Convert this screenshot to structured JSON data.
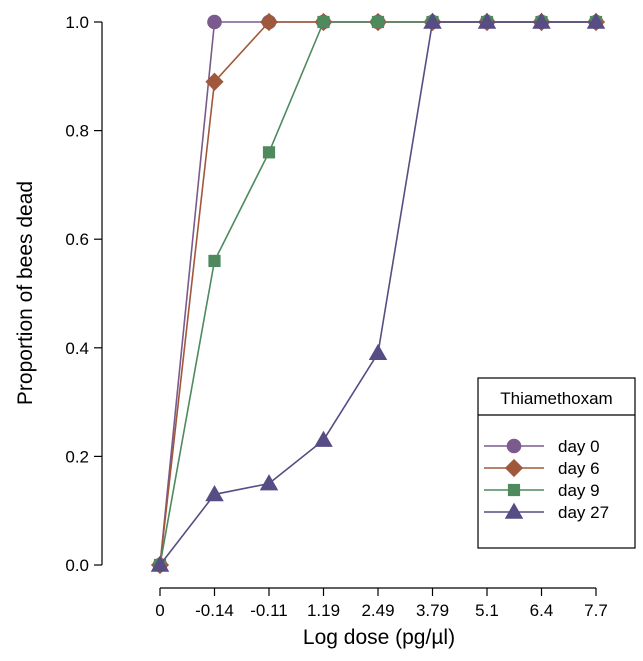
{
  "chart_data": {
    "type": "line",
    "title": "",
    "xlabel": "Log dose (pg/µl)",
    "ylabel": "Proportion of bees dead",
    "categories": [
      "0",
      "-0.14",
      "-0.11",
      "1.19",
      "2.49",
      "3.79",
      "5.1",
      "6.4",
      "7.7"
    ],
    "ylim": [
      0,
      1
    ],
    "yticks": [
      "0.0",
      "0.2",
      "0.4",
      "0.6",
      "0.8",
      "1.0"
    ],
    "grid": false,
    "legend": {
      "title": "Thiamethoxam",
      "placement": "bottom-right"
    },
    "series": [
      {
        "name": "day 0",
        "marker": "circle",
        "color": "#7b5a8e",
        "values": [
          0,
          1.0,
          1.0,
          1.0,
          1.0,
          1.0,
          1.0,
          1.0,
          1.0
        ]
      },
      {
        "name": "day 6",
        "marker": "diamond",
        "color": "#a0583a",
        "values": [
          0,
          0.89,
          1.0,
          1.0,
          1.0,
          1.0,
          1.0,
          1.0,
          1.0
        ]
      },
      {
        "name": "day 9",
        "marker": "square",
        "color": "#4e8a5e",
        "values": [
          0,
          0.56,
          0.76,
          1.0,
          1.0,
          1.0,
          1.0,
          1.0,
          1.0
        ]
      },
      {
        "name": "day 27",
        "marker": "triangle",
        "color": "#574c84",
        "values": [
          0,
          0.13,
          0.15,
          0.23,
          0.39,
          1.0,
          1.0,
          1.0,
          1.0
        ]
      }
    ]
  }
}
